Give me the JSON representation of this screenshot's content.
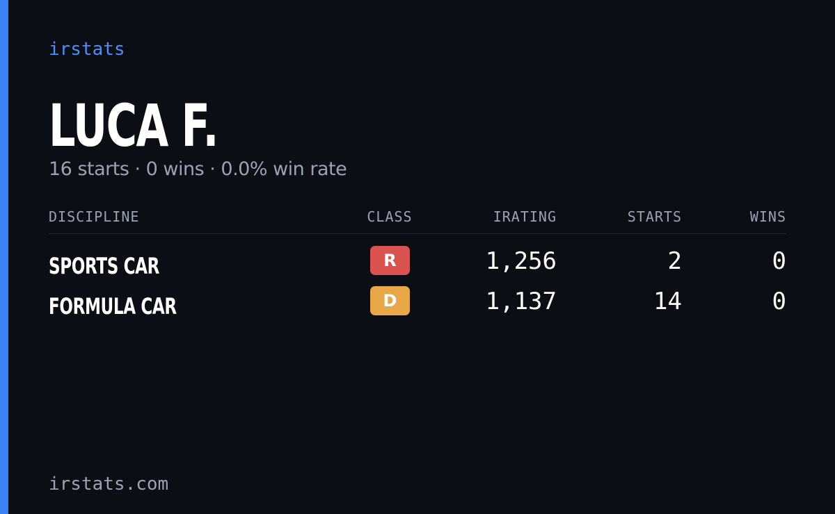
{
  "brand": "irstats",
  "driver": {
    "name": "LUCA F.",
    "summary": "16 starts · 0 wins · 0.0% win rate"
  },
  "table": {
    "headers": [
      "DISCIPLINE",
      "CLASS",
      "IRATING",
      "STARTS",
      "WINS"
    ],
    "rows": [
      {
        "discipline": "SPORTS CAR",
        "class": "R",
        "class_color": "#d9534f",
        "irating": "1,256",
        "starts": 2,
        "wins": 0
      },
      {
        "discipline": "FORMULA CAR",
        "class": "D",
        "class_color": "#e8a84a",
        "irating": "1,137",
        "starts": 14,
        "wins": 0
      }
    ]
  },
  "footer": "irstats.com"
}
